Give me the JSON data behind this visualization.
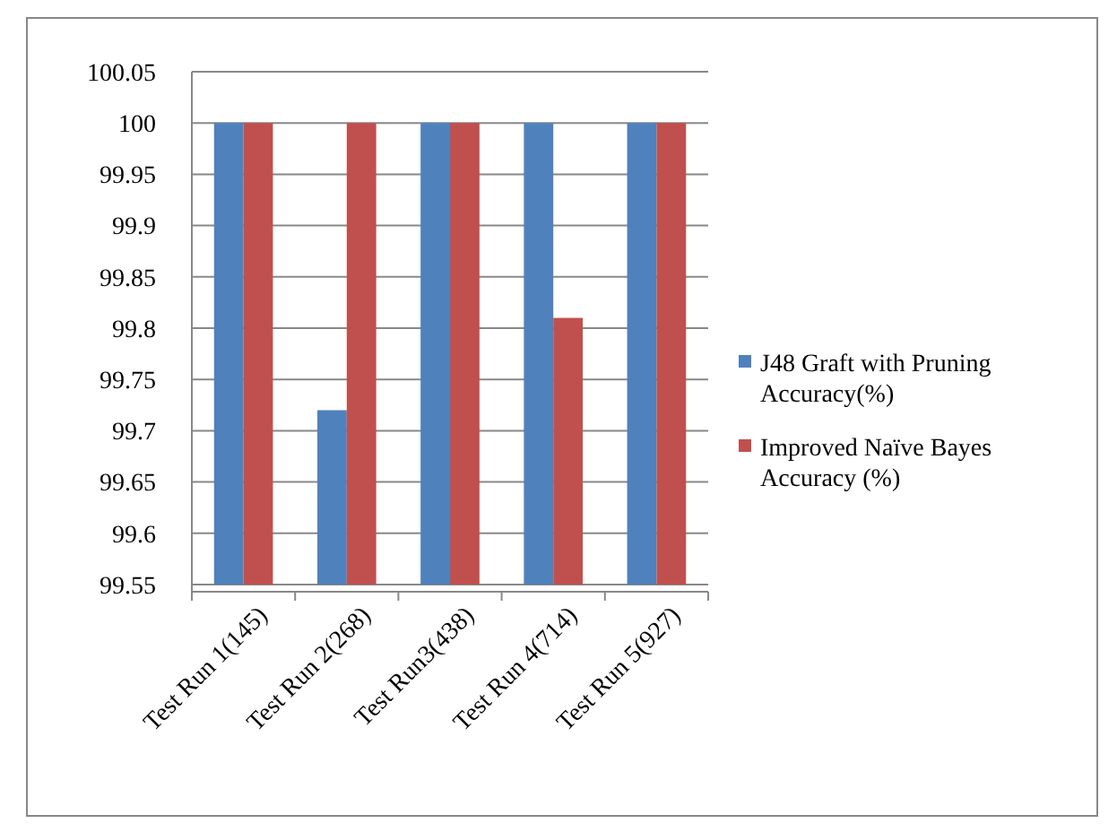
{
  "chart_data": {
    "type": "bar",
    "categories": [
      "Test Run 1(145)",
      "Test Run 2(268)",
      "Test Run3(438)",
      "Test Run 4(714)",
      "Test Run 5(927)"
    ],
    "series": [
      {
        "name": "J48 Graft with Pruning Accuracy(%)",
        "color": "#4f81bd",
        "values": [
          100,
          99.72,
          100,
          100,
          100
        ]
      },
      {
        "name": "Improved Naïve Bayes Accuracy (%)",
        "color": "#c0504d",
        "values": [
          100,
          100,
          100,
          99.81,
          100
        ]
      }
    ],
    "ylim": [
      99.55,
      100.05
    ],
    "yticks": [
      99.55,
      99.6,
      99.65,
      99.7,
      99.75,
      99.8,
      99.85,
      99.9,
      99.95,
      100,
      100.05
    ],
    "grid": "y",
    "legend": "right"
  }
}
